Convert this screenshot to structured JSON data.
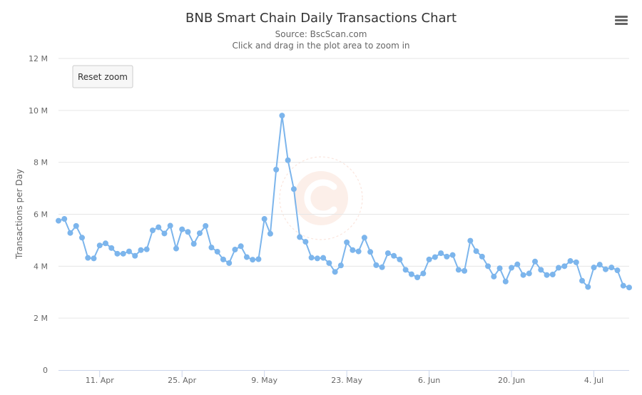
{
  "chart_data": {
    "type": "line",
    "title": "BNB Smart Chain Daily Transactions Chart",
    "subtitle": "Source: BscScan.com",
    "subtitle2": "Click and drag in the plot area to zoom in",
    "ylabel": "Transactions per Day",
    "xlabel": "",
    "ylim": [
      0,
      12
    ],
    "y_unit": "M",
    "y_ticks": [
      "0",
      "2 M",
      "4 M",
      "6 M",
      "8 M",
      "10 M",
      "12 M"
    ],
    "x_range": [
      "2021-04-04",
      "2021-07-10"
    ],
    "x_ticks": [
      {
        "date": "2021-04-11",
        "label": "11. Apr"
      },
      {
        "date": "2021-04-25",
        "label": "25. Apr"
      },
      {
        "date": "2021-05-09",
        "label": "9. May"
      },
      {
        "date": "2021-05-23",
        "label": "23. May"
      },
      {
        "date": "2021-06-06",
        "label": "6. Jun"
      },
      {
        "date": "2021-06-20",
        "label": "20. Jun"
      },
      {
        "date": "2021-07-04",
        "label": "4. Jul"
      }
    ],
    "grid": true,
    "legend": "none",
    "color": "#7cb5ec",
    "series": [
      {
        "x": [
          "2021-04-04",
          "2021-04-05",
          "2021-04-06",
          "2021-04-07",
          "2021-04-08",
          "2021-04-09",
          "2021-04-10",
          "2021-04-11",
          "2021-04-12",
          "2021-04-13",
          "2021-04-14",
          "2021-04-15",
          "2021-04-16",
          "2021-04-17",
          "2021-04-18",
          "2021-04-19",
          "2021-04-20",
          "2021-04-21",
          "2021-04-22",
          "2021-04-23",
          "2021-04-24",
          "2021-04-25",
          "2021-04-26",
          "2021-04-27",
          "2021-04-28",
          "2021-04-29",
          "2021-04-30",
          "2021-05-01",
          "2021-05-02",
          "2021-05-03",
          "2021-05-04",
          "2021-05-05",
          "2021-05-06",
          "2021-05-07",
          "2021-05-08",
          "2021-05-09",
          "2021-05-10",
          "2021-05-11",
          "2021-05-12",
          "2021-05-13",
          "2021-05-14",
          "2021-05-15",
          "2021-05-16",
          "2021-05-17",
          "2021-05-18",
          "2021-05-19",
          "2021-05-20",
          "2021-05-21",
          "2021-05-22",
          "2021-05-23",
          "2021-05-24",
          "2021-05-25",
          "2021-05-26",
          "2021-05-27",
          "2021-05-28",
          "2021-05-29",
          "2021-05-30",
          "2021-05-31",
          "2021-06-01",
          "2021-06-02",
          "2021-06-03",
          "2021-06-04",
          "2021-06-05",
          "2021-06-06",
          "2021-06-07",
          "2021-06-08",
          "2021-06-09",
          "2021-06-10",
          "2021-06-11",
          "2021-06-12",
          "2021-06-13",
          "2021-06-14",
          "2021-06-15",
          "2021-06-16",
          "2021-06-17",
          "2021-06-18",
          "2021-06-19",
          "2021-06-20",
          "2021-06-21",
          "2021-06-22",
          "2021-06-23",
          "2021-06-24",
          "2021-06-25",
          "2021-06-26",
          "2021-06-27",
          "2021-06-28",
          "2021-06-29",
          "2021-06-30",
          "2021-07-01",
          "2021-07-02",
          "2021-07-03",
          "2021-07-04",
          "2021-07-05",
          "2021-07-06",
          "2021-07-07",
          "2021-07-08",
          "2021-07-09",
          "2021-07-10"
        ],
        "values": [
          5.75,
          5.82,
          5.28,
          5.55,
          5.1,
          4.32,
          4.3,
          4.8,
          4.88,
          4.7,
          4.48,
          4.48,
          4.57,
          4.4,
          4.62,
          4.65,
          5.38,
          5.5,
          5.26,
          5.56,
          4.68,
          5.42,
          5.32,
          4.86,
          5.27,
          5.55,
          4.72,
          4.56,
          4.26,
          4.12,
          4.64,
          4.77,
          4.35,
          4.25,
          4.27,
          5.82,
          5.25,
          7.72,
          9.8,
          8.08,
          6.97,
          5.12,
          4.94,
          4.33,
          4.3,
          4.32,
          4.12,
          3.78,
          4.03,
          4.92,
          4.62,
          4.57,
          5.1,
          4.55,
          4.04,
          3.96,
          4.5,
          4.4,
          4.26,
          3.86,
          3.69,
          3.57,
          3.72,
          4.26,
          4.35,
          4.5,
          4.37,
          4.43,
          3.86,
          3.82,
          4.98,
          4.58,
          4.37,
          4.0,
          3.6,
          3.92,
          3.41,
          3.94,
          4.07,
          3.66,
          3.72,
          4.18,
          3.86,
          3.66,
          3.68,
          3.94,
          4.0,
          4.2,
          4.15,
          3.44,
          3.2,
          3.95,
          4.06,
          3.88,
          3.95,
          3.84,
          3.25,
          3.18
        ]
      }
    ]
  },
  "controls": {
    "reset_zoom_label": "Reset zoom",
    "menu_icon": "hamburger-menu-icon"
  },
  "watermark": {
    "brand": "CoinCodex",
    "text": "CoinCodex.com"
  }
}
